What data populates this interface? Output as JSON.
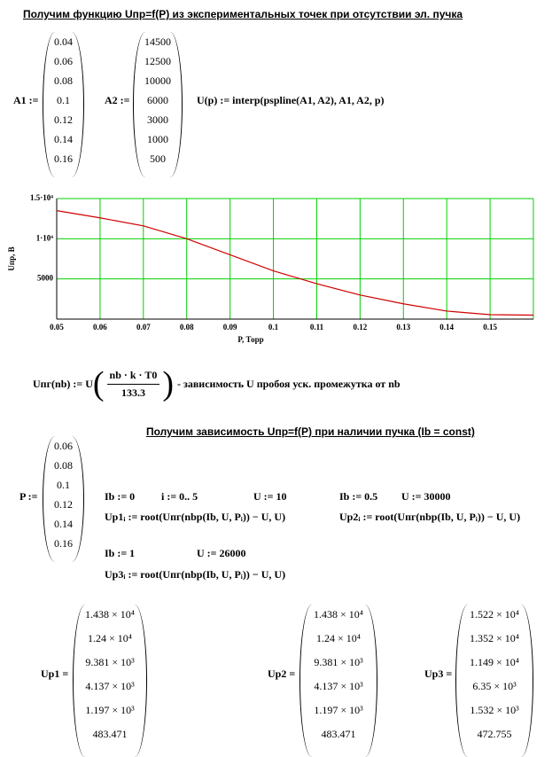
{
  "heading1": "Получим функцию Uпр=f(P) из экспериментальных точек при отсутствии эл. пучка",
  "A1": {
    "name": "A1 :=",
    "values": [
      0.04,
      0.06,
      0.08,
      0.1,
      0.12,
      0.14,
      0.16
    ]
  },
  "A2": {
    "name": "A2 :=",
    "values": [
      14500,
      12500,
      10000,
      6000,
      3000,
      1000,
      500
    ]
  },
  "U_def": "U(p) := interp(pspline(A1, A2), A1, A2, p)",
  "chart_data": {
    "type": "line",
    "x": [
      0.05,
      0.06,
      0.07,
      0.08,
      0.09,
      0.1,
      0.11,
      0.12,
      0.13,
      0.14,
      0.15,
      0.16
    ],
    "values": [
      13500,
      12600,
      11600,
      10000,
      8000,
      6000,
      4400,
      3000,
      1900,
      1000,
      550,
      500
    ],
    "color": "#d00000",
    "xlim": [
      0.05,
      0.16
    ],
    "xticks": [
      0.05,
      0.06,
      0.07,
      0.08,
      0.09,
      0.1,
      0.11,
      0.12,
      0.13,
      0.14,
      0.15
    ],
    "ylim": [
      0,
      15000
    ],
    "yticks": [
      5000,
      {
        "value": 10000,
        "label": "1·10⁴"
      },
      {
        "value": 15000,
        "label": "1.5·10⁴"
      }
    ],
    "xlabel": "P, Торр",
    "ylabel": "Uпр, В",
    "grid": true,
    "grid_color": "#00d000"
  },
  "upr_def": {
    "lhs": "Uпг(nb) := U",
    "numerator": "nb · k · T0",
    "denominator": "133.3",
    "comment": "- зависимость U пробоя уск. промежутка от nb"
  },
  "heading2": "Получим зависимость Uпр=f(P) при наличии пучка (Ib = const)",
  "P": {
    "name": "P :=",
    "values": [
      0.06,
      0.08,
      0.1,
      0.12,
      0.14,
      0.16
    ]
  },
  "ib0": "Ib := 0",
  "i_range": "i := 0.. 5",
  "u10": "U := 10",
  "ib05": "Ib := 0.5",
  "u30000": "U := 30000",
  "up1_def": "Up1ᵢ := root(Uпг(nbp(Ib, U, Pᵢ)) − U, U)",
  "up2_def": "Up2ᵢ := root(Uпг(nbp(Ib, U, Pᵢ)) − U, U)",
  "ib1": "Ib := 1",
  "u26000": "U := 26000",
  "up3_def": "Up3ᵢ := root(Uпг(nbp(Ib, U, Pᵢ)) − U, U)",
  "Up1": {
    "name": "Up1 =",
    "values": [
      "1.438 × 10⁴",
      "1.24 × 10⁴",
      "9.381 × 10³",
      "4.137 × 10³",
      "1.197 × 10³",
      "483.471"
    ]
  },
  "Up2": {
    "name": "Up2 =",
    "values": [
      "1.438 × 10⁴",
      "1.24 × 10⁴",
      "9.381 × 10³",
      "4.137 × 10³",
      "1.197 × 10³",
      "483.471"
    ]
  },
  "Up3": {
    "name": "Up3 =",
    "values": [
      "1.522 × 10⁴",
      "1.352 × 10⁴",
      "1.149 × 10⁴",
      "6.35 × 10³",
      "1.532 × 10³",
      "472.755"
    ]
  }
}
